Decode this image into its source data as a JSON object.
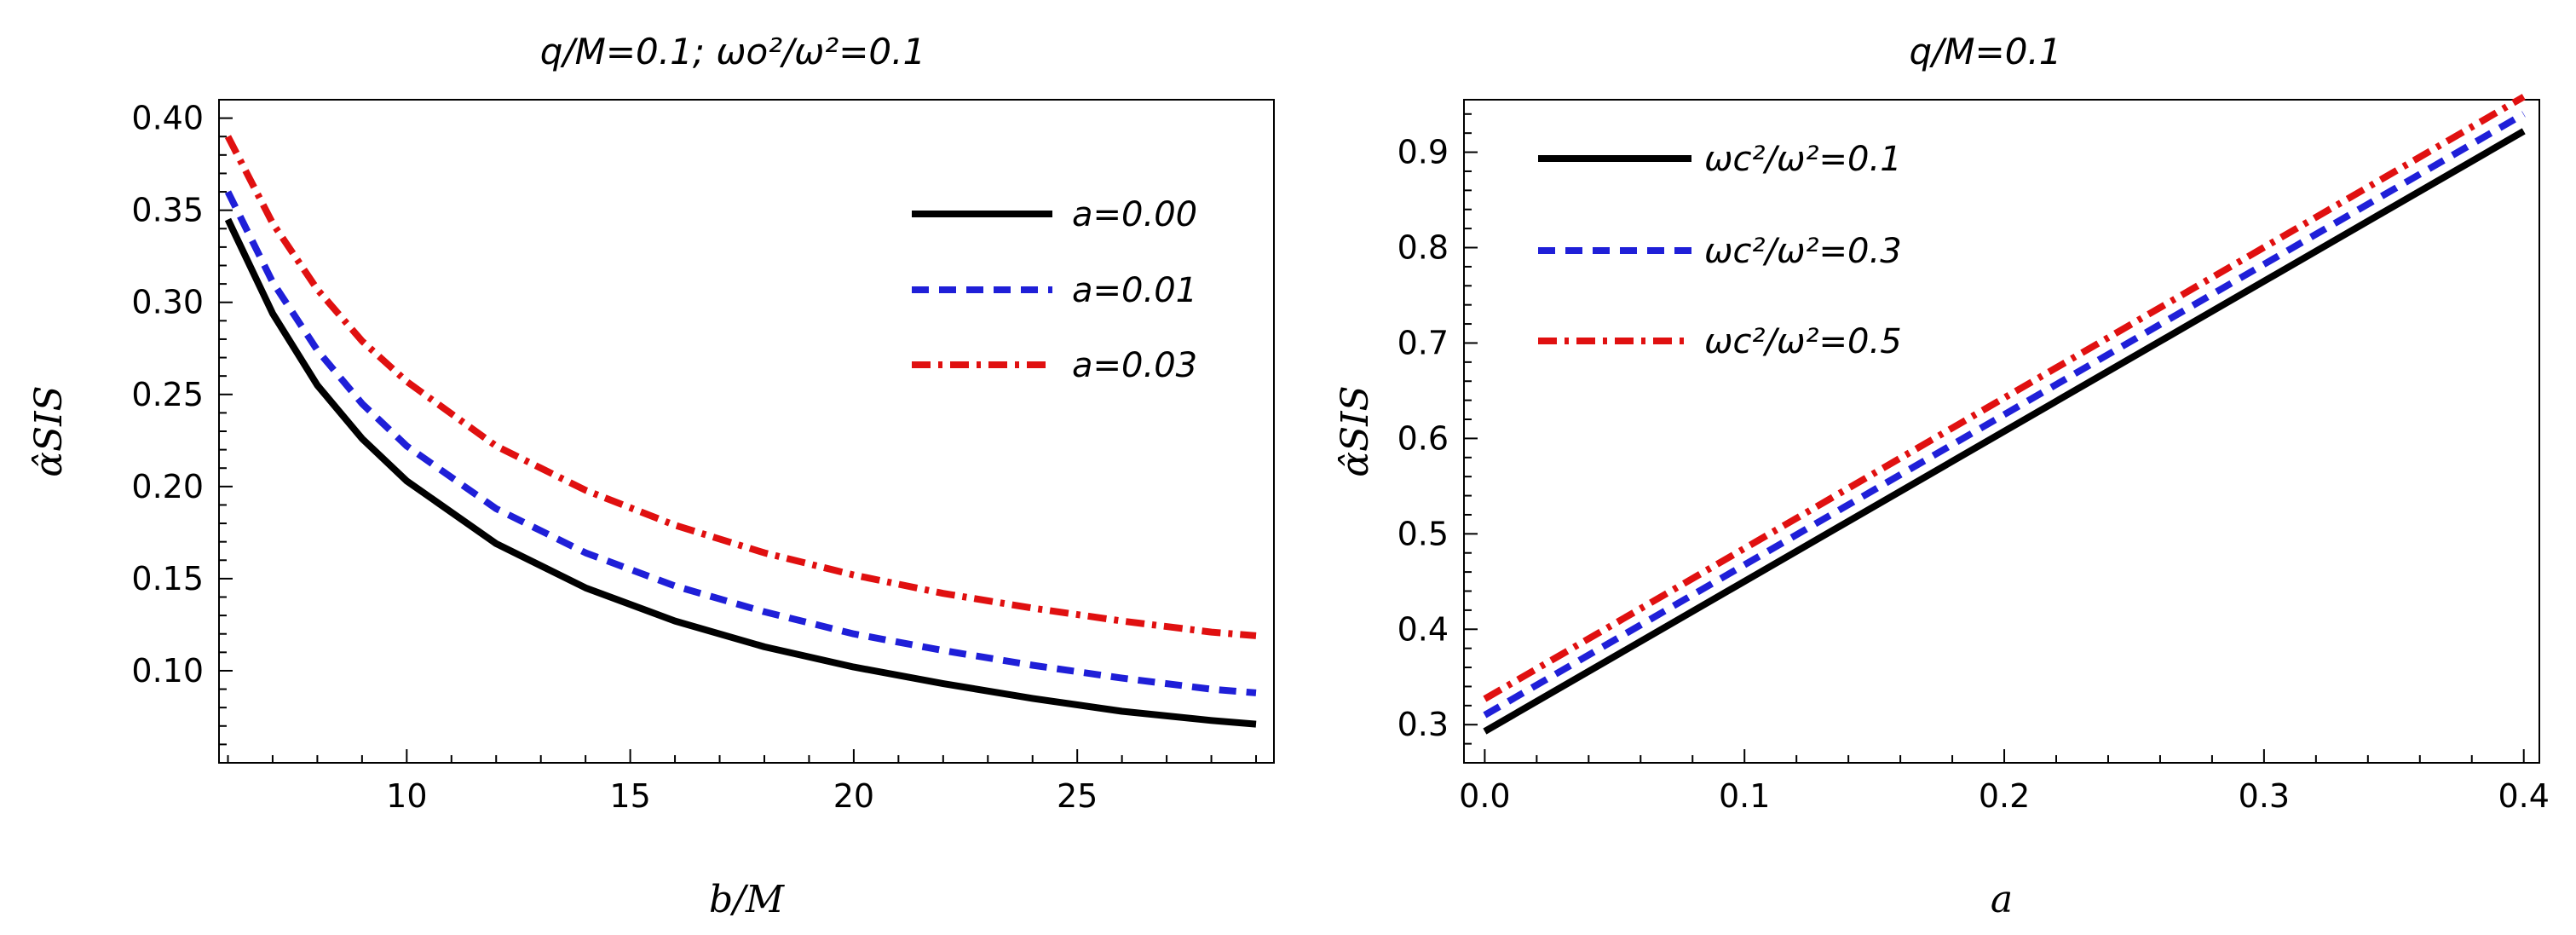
{
  "chart_data": [
    {
      "type": "line",
      "title": "q/M=0.1;     ωo²/ω²=0.1",
      "xlabel": "b/M",
      "ylabel": "α̂SIS",
      "xlim": [
        5.8,
        29.4
      ],
      "ylim": [
        0.05,
        0.41
      ],
      "xticks": [
        10,
        15,
        20,
        25
      ],
      "xtick_labels": [
        "10",
        "15",
        "20",
        "25"
      ],
      "yticks": [
        0.1,
        0.15,
        0.2,
        0.25,
        0.3,
        0.35,
        0.4
      ],
      "ytick_labels": [
        "0.10",
        "0.15",
        "0.20",
        "0.25",
        "0.30",
        "0.35",
        "0.40"
      ],
      "legend_position": "top-right",
      "x": [
        6,
        7,
        8,
        9,
        10,
        12,
        14,
        16,
        18,
        20,
        22,
        24,
        26,
        28,
        29
      ],
      "series": [
        {
          "name": "a=0.00",
          "color": "#000000",
          "style": "solid",
          "values": [
            0.345,
            0.294,
            0.255,
            0.226,
            0.203,
            0.169,
            0.145,
            0.127,
            0.113,
            0.102,
            0.093,
            0.085,
            0.078,
            0.073,
            0.071
          ]
        },
        {
          "name": "a=0.01",
          "color": "#1f1fd8",
          "style": "dashed",
          "values": [
            0.36,
            0.311,
            0.274,
            0.245,
            0.222,
            0.188,
            0.164,
            0.146,
            0.132,
            0.12,
            0.111,
            0.103,
            0.096,
            0.09,
            0.088
          ]
        },
        {
          "name": "a=0.03",
          "color": "#e01010",
          "style": "dashdot",
          "values": [
            0.39,
            0.343,
            0.307,
            0.279,
            0.257,
            0.222,
            0.198,
            0.179,
            0.164,
            0.152,
            0.142,
            0.134,
            0.127,
            0.121,
            0.119
          ]
        }
      ]
    },
    {
      "type": "line",
      "title": "q/M=0.1",
      "xlabel": "a",
      "ylabel": "α̂SIS",
      "xlim": [
        -0.008,
        0.406
      ],
      "ylim": [
        0.26,
        0.955
      ],
      "xticks": [
        0.0,
        0.1,
        0.2,
        0.3,
        0.4
      ],
      "xtick_labels": [
        "0.0",
        "0.1",
        "0.2",
        "0.3",
        "0.4"
      ],
      "yticks": [
        0.3,
        0.4,
        0.5,
        0.6,
        0.7,
        0.8,
        0.9
      ],
      "ytick_labels": [
        "0.3",
        "0.4",
        "0.5",
        "0.6",
        "0.7",
        "0.8",
        "0.9"
      ],
      "legend_position": "top-left",
      "x": [
        0.0,
        0.4
      ],
      "series": [
        {
          "name": "ωc²/ω²=0.1",
          "color": "#000000",
          "style": "solid",
          "values": [
            0.293,
            0.922
          ]
        },
        {
          "name": "ωc²/ω²=0.3",
          "color": "#1f1fd8",
          "style": "dashed",
          "values": [
            0.31,
            0.94
          ]
        },
        {
          "name": "ωc²/ω²=0.5",
          "color": "#e01010",
          "style": "dashdot",
          "values": [
            0.327,
            0.958
          ]
        }
      ]
    }
  ]
}
